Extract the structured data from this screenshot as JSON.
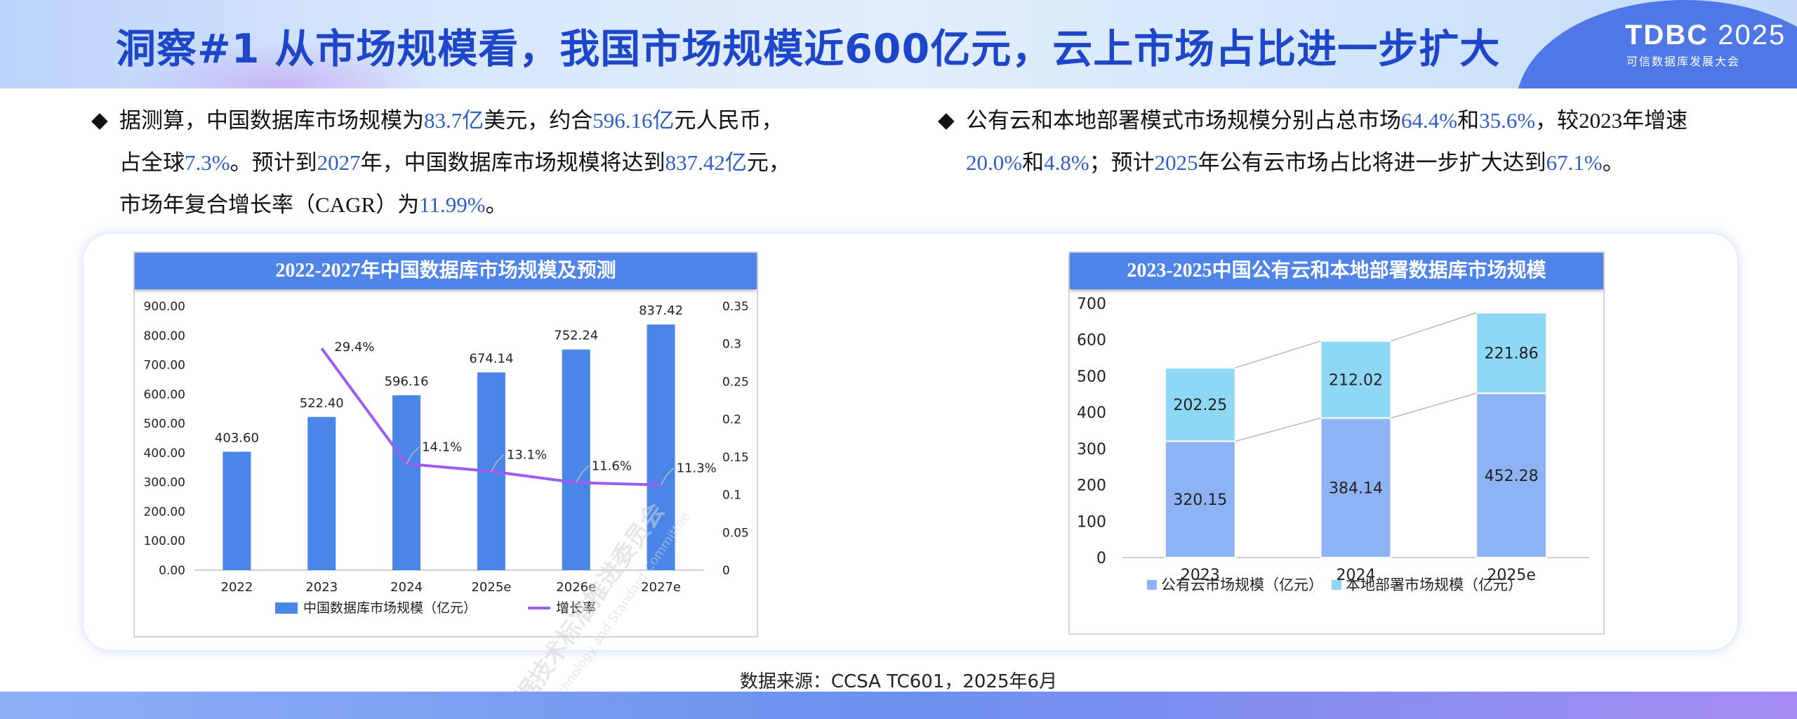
{
  "header": {
    "title": "洞察#1 从市场规模看，我国市场规模近600亿元，云上市场占比进一步扩大",
    "brand_main": "TDBC",
    "brand_year": "2025",
    "brand_sub": "可信数据库发展大会"
  },
  "bullets": {
    "left": {
      "l1": [
        "据测算，中国数据库市场规模为",
        "83.7亿",
        "美元，约合",
        "596.16亿",
        "元人民币，"
      ],
      "l2": [
        "占全球",
        "7.3%",
        "。预计到",
        "2027",
        "年，中国数据库市场规模将达到",
        "837.42亿",
        "元，"
      ],
      "l3": [
        "市场年复合增长率（",
        "CAGR",
        "）为",
        "11.99%",
        "。"
      ]
    },
    "right": {
      "l1": [
        "公有云和本地部署模式市场规模分别占总市场",
        "64.4%",
        "和",
        "35.6%",
        "，较",
        "2023",
        "年增速"
      ],
      "l2": [
        "20.0%",
        "和",
        "4.8%",
        "；预计",
        "2025",
        "年公有云市场占比将进一步扩大达到",
        "67.1%",
        "。"
      ]
    },
    "marker": "◆"
  },
  "chart_data": [
    {
      "type": "bar+line",
      "title": "2022-2027年中国数据库市场规模及预测",
      "categories": [
        "2022",
        "2023",
        "2024",
        "2025e",
        "2026e",
        "2027e"
      ],
      "series": [
        {
          "name": "中国数据库市场规模（亿元）",
          "type": "bar",
          "axis": "left",
          "values": [
            403.6,
            522.4,
            596.16,
            674.14,
            752.24,
            837.42
          ],
          "labels": [
            "403.60",
            "522.40",
            "596.16",
            "674.14",
            "752.24",
            "837.42"
          ]
        },
        {
          "name": "增长率",
          "type": "line",
          "axis": "right",
          "values": [
            null,
            0.294,
            0.141,
            0.131,
            0.116,
            0.113
          ],
          "labels": [
            "",
            "29.4%",
            "14.1%",
            "13.1%",
            "11.6%",
            "11.3%"
          ]
        }
      ],
      "y_left": {
        "min": 0,
        "max": 900,
        "ticks": [
          "0.00",
          "100.00",
          "200.00",
          "300.00",
          "400.00",
          "500.00",
          "600.00",
          "700.00",
          "800.00",
          "900.00"
        ]
      },
      "y_right": {
        "min": 0,
        "max": 0.35,
        "ticks": [
          "0",
          "0.05",
          "0.1",
          "0.15",
          "0.2",
          "0.25",
          "0.3",
          "0.35"
        ]
      },
      "legend": "bottom",
      "colors": {
        "bar": "#4a86e8",
        "line": "#9a5ef0"
      }
    },
    {
      "type": "stacked-bar",
      "title": "2023-2025中国公有云和本地部署数据库市场规模",
      "categories": [
        "2023",
        "2024",
        "2025e"
      ],
      "series": [
        {
          "name": "公有云市场规模（亿元）",
          "values": [
            320.15,
            384.14,
            452.28
          ],
          "color": "#8db3f4"
        },
        {
          "name": "本地部署市场规模（亿元）",
          "values": [
            202.25,
            212.02,
            221.86
          ],
          "color": "#8fd8f5"
        }
      ],
      "y": {
        "min": 0,
        "max": 700,
        "ticks": [
          "0",
          "100",
          "200",
          "300",
          "400",
          "500",
          "600",
          "700"
        ]
      },
      "legend": "bottom"
    }
  ],
  "watermark": {
    "line1": "数据技术标准推进委员会",
    "line2": "Data Technology and Standard Committee"
  },
  "source": "数据来源：CCSA TC601，2025年6月"
}
